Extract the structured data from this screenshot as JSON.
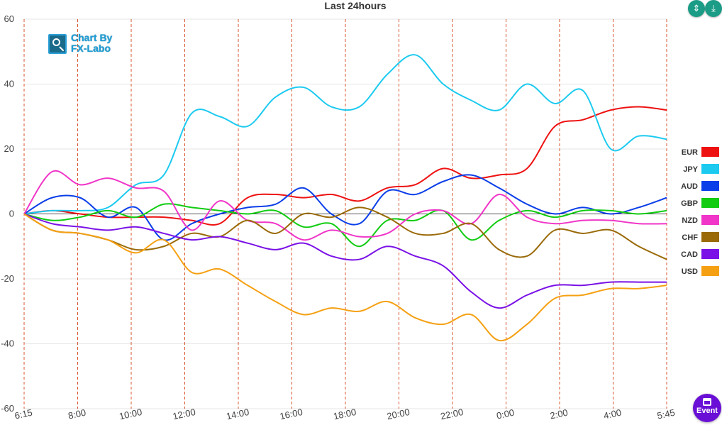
{
  "chart_data": {
    "type": "line",
    "title": "Last 24hours",
    "ylim": [
      -60,
      60
    ],
    "yticks": [
      60,
      40,
      20,
      0,
      -20,
      -40,
      -60
    ],
    "xticks": [
      "6:15",
      "8:00",
      "10:00",
      "12:00",
      "14:00",
      "16:00",
      "18:00",
      "20:00",
      "22:00",
      "0:00",
      "2:00",
      "4:00",
      "5:45"
    ],
    "grid": "vertical dashed at ticks",
    "legend_position": "right",
    "series": [
      {
        "name": "EUR",
        "color": "#ee1111",
        "values": [
          0,
          1,
          0,
          -1,
          -1,
          -1,
          -2,
          -3,
          5,
          6,
          5,
          6,
          4,
          8,
          9,
          14,
          11,
          12,
          14,
          27,
          29,
          32,
          33,
          32
        ]
      },
      {
        "name": "JPY",
        "color": "#1ccaf0",
        "values": [
          0,
          1,
          1,
          2,
          9,
          12,
          31,
          30,
          27,
          36,
          39,
          33,
          33,
          43,
          49,
          40,
          35,
          32,
          40,
          34,
          38,
          20,
          24,
          23
        ]
      },
      {
        "name": "AUD",
        "color": "#0a3ee8",
        "values": [
          0,
          5,
          5,
          -1,
          2,
          -8,
          -3,
          0,
          2,
          3,
          8,
          0,
          -3,
          7,
          6,
          10,
          12,
          8,
          3,
          0,
          2,
          0,
          2,
          5
        ]
      },
      {
        "name": "GBP",
        "color": "#11cc11",
        "values": [
          0,
          -2,
          -1,
          1,
          -1,
          3,
          2,
          1,
          0,
          1,
          -4,
          -3,
          -10,
          -2,
          -2,
          1,
          -8,
          -2,
          1,
          -1,
          1,
          1,
          0,
          1
        ]
      },
      {
        "name": "NZD",
        "color": "#f035c8",
        "values": [
          0,
          13,
          9,
          11,
          8,
          7,
          -5,
          4,
          -2,
          -3,
          -8,
          -5,
          -7,
          -6,
          0,
          1,
          -3,
          6,
          -1,
          -3,
          -2,
          -2,
          -3,
          -3
        ]
      },
      {
        "name": "CHF",
        "color": "#9a6a08",
        "values": [
          0,
          -5,
          -6,
          -8,
          -11,
          -10,
          -6,
          -7,
          -2,
          -6,
          0,
          -1,
          2,
          -1,
          -6,
          -6,
          -3,
          -11,
          -13,
          -5,
          -6,
          -5,
          -10,
          -14
        ]
      },
      {
        "name": "CAD",
        "color": "#7a11e6",
        "values": [
          0,
          -3,
          -4,
          -5,
          -4,
          -6,
          -8,
          -7,
          -9,
          -11,
          -9,
          -13,
          -14,
          -10,
          -13,
          -16,
          -24,
          -29,
          -25,
          -22,
          -22,
          -21,
          -21,
          -21
        ]
      },
      {
        "name": "USD",
        "color": "#f5a012",
        "values": [
          0,
          -5,
          -6,
          -8,
          -12,
          -8,
          -18,
          -17,
          -22,
          -27,
          -31,
          -29,
          -30,
          -27,
          -32,
          -34,
          -31,
          -39,
          -34,
          -26,
          -25,
          -23,
          -23,
          -22
        ]
      }
    ]
  },
  "logo": {
    "line1": "Chart By",
    "line2": "FX-Labo"
  },
  "toolbar": {
    "collapse_symbol": "⇕",
    "expand_symbol": "⤓"
  },
  "event_button": {
    "label": "Event"
  }
}
